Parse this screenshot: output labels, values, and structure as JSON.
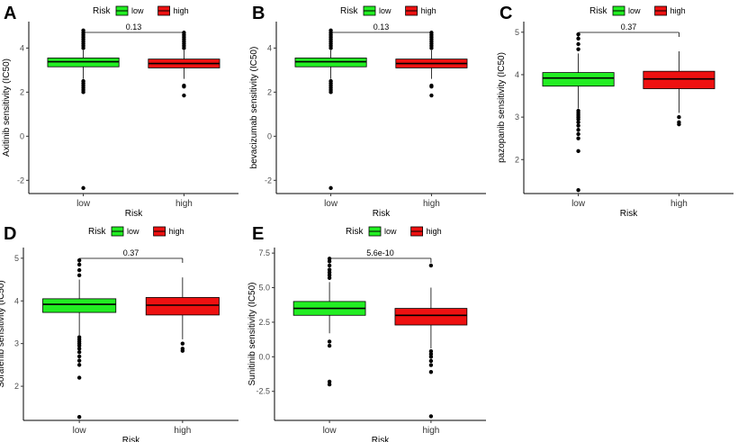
{
  "colors": {
    "low": "#22ee22",
    "high": "#ee1111"
  },
  "chart_data": [
    {
      "type": "box",
      "panel": "A",
      "title": "",
      "xlabel": "Risk",
      "ylabel": "Axitinib sensitivity (IC50)",
      "categories": [
        "low",
        "high"
      ],
      "ylim": [
        -2.6,
        5.2
      ],
      "yticks": [
        -2,
        0,
        2,
        4
      ],
      "legend": {
        "title": "Risk",
        "items": [
          "low",
          "high"
        ]
      },
      "pvalue": "0.13",
      "boxes": [
        {
          "group": "low",
          "whisker_low": 2.6,
          "q1": 3.15,
          "median": 3.38,
          "q3": 3.55,
          "whisker_high": 3.9,
          "outliers": [
            4.8,
            4.7,
            4.6,
            4.5,
            4.4,
            4.3,
            4.2,
            4.1,
            4.0,
            2.5,
            2.4,
            2.3,
            2.2,
            2.1,
            2.0,
            -2.35
          ]
        },
        {
          "group": "high",
          "whisker_low": 2.6,
          "q1": 3.1,
          "median": 3.3,
          "q3": 3.5,
          "whisker_high": 3.9,
          "outliers": [
            4.7,
            4.6,
            4.5,
            4.4,
            4.3,
            4.2,
            4.1,
            4.0,
            2.3,
            2.25,
            1.85
          ]
        }
      ]
    },
    {
      "type": "box",
      "panel": "B",
      "title": "",
      "xlabel": "Risk",
      "ylabel": "bevacizumab sensitivity (IC50)",
      "categories": [
        "low",
        "high"
      ],
      "ylim": [
        -2.6,
        5.2
      ],
      "yticks": [
        -2,
        0,
        2,
        4
      ],
      "legend": {
        "title": "Risk",
        "items": [
          "low",
          "high"
        ]
      },
      "pvalue": "0.13",
      "boxes": [
        {
          "group": "low",
          "whisker_low": 2.6,
          "q1": 3.15,
          "median": 3.38,
          "q3": 3.55,
          "whisker_high": 3.9,
          "outliers": [
            4.8,
            4.7,
            4.6,
            4.5,
            4.4,
            4.3,
            4.2,
            4.1,
            4.0,
            2.5,
            2.4,
            2.3,
            2.2,
            2.1,
            2.0,
            -2.35
          ]
        },
        {
          "group": "high",
          "whisker_low": 2.6,
          "q1": 3.1,
          "median": 3.3,
          "q3": 3.5,
          "whisker_high": 3.9,
          "outliers": [
            4.7,
            4.6,
            4.5,
            4.4,
            4.3,
            4.2,
            4.1,
            4.0,
            2.3,
            2.25,
            1.85
          ]
        }
      ]
    },
    {
      "type": "box",
      "panel": "C",
      "title": "",
      "xlabel": "Risk",
      "ylabel": "pazopanib sensitivity (IC50)",
      "categories": [
        "low",
        "high"
      ],
      "ylim": [
        1.2,
        5.25
      ],
      "yticks": [
        2,
        3,
        4,
        5
      ],
      "legend": {
        "title": "Risk",
        "items": [
          "low",
          "high"
        ]
      },
      "pvalue": "0.37",
      "boxes": [
        {
          "group": "low",
          "whisker_low": 3.2,
          "q1": 3.73,
          "median": 3.92,
          "q3": 4.05,
          "whisker_high": 4.5,
          "outliers": [
            4.95,
            4.85,
            4.72,
            4.6,
            3.15,
            3.1,
            3.05,
            3.0,
            2.95,
            2.88,
            2.8,
            2.7,
            2.6,
            2.5,
            2.2,
            1.28
          ]
        },
        {
          "group": "high",
          "whisker_low": 3.1,
          "q1": 3.67,
          "median": 3.9,
          "q3": 4.08,
          "whisker_high": 4.55,
          "outliers": [
            3.0,
            2.88,
            2.83
          ]
        }
      ]
    },
    {
      "type": "box",
      "panel": "D",
      "title": "",
      "xlabel": "Risk",
      "ylabel": "Sorafenib sensitivity (IC50)",
      "categories": [
        "low",
        "high"
      ],
      "ylim": [
        1.2,
        5.25
      ],
      "yticks": [
        2,
        3,
        4,
        5
      ],
      "legend": {
        "title": "Risk",
        "items": [
          "low",
          "high"
        ]
      },
      "pvalue": "0.37",
      "boxes": [
        {
          "group": "low",
          "whisker_low": 3.2,
          "q1": 3.73,
          "median": 3.92,
          "q3": 4.05,
          "whisker_high": 4.5,
          "outliers": [
            4.95,
            4.85,
            4.72,
            4.6,
            3.15,
            3.1,
            3.05,
            3.0,
            2.95,
            2.88,
            2.8,
            2.7,
            2.6,
            2.5,
            2.2,
            1.28
          ]
        },
        {
          "group": "high",
          "whisker_low": 3.1,
          "q1": 3.67,
          "median": 3.9,
          "q3": 4.08,
          "whisker_high": 4.55,
          "outliers": [
            3.0,
            2.88,
            2.83
          ]
        }
      ]
    },
    {
      "type": "box",
      "panel": "E",
      "title": "",
      "xlabel": "Risk",
      "ylabel": "Sunitinib sensitivity (IC50)",
      "categories": [
        "low",
        "high"
      ],
      "ylim": [
        -4.6,
        7.9
      ],
      "yticks": [
        -2.5,
        0.0,
        2.5,
        5.0,
        7.5
      ],
      "ytick_labels": [
        "-2.5",
        "0.0",
        "2.5",
        "5.0",
        "7.5"
      ],
      "legend": {
        "title": "Risk",
        "items": [
          "low",
          "high"
        ]
      },
      "pvalue": "5.6e-10",
      "boxes": [
        {
          "group": "low",
          "whisker_low": 1.7,
          "q1": 3.0,
          "median": 3.5,
          "q3": 4.0,
          "whisker_high": 5.4,
          "outliers": [
            7.1,
            6.9,
            6.6,
            6.3,
            6.1,
            5.9,
            5.7,
            1.1,
            0.8,
            -1.8,
            -2.0
          ]
        },
        {
          "group": "high",
          "whisker_low": 0.6,
          "q1": 2.3,
          "median": 3.0,
          "q3": 3.5,
          "whisker_high": 5.0,
          "outliers": [
            6.6,
            0.4,
            0.2,
            0.0,
            -0.3,
            -0.6,
            -1.1,
            -4.3
          ]
        }
      ]
    }
  ]
}
